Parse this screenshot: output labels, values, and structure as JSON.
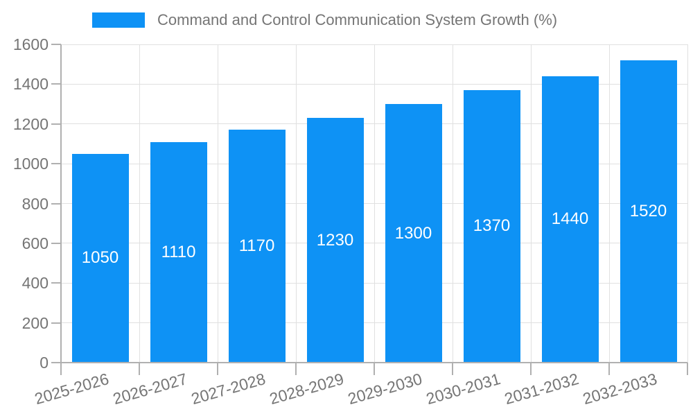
{
  "legend": {
    "series_label": "Command and Control Communication System Growth (%)"
  },
  "chart_data": {
    "type": "bar",
    "title": "Command and Control Communication System Growth (%)",
    "categories": [
      "2025-2026",
      "2026-2027",
      "2027-2028",
      "2028-2029",
      "2029-2030",
      "2030-2031",
      "2031-2032",
      "2032-2033"
    ],
    "values": [
      1050,
      1110,
      1170,
      1230,
      1300,
      1370,
      1440,
      1520
    ],
    "xlabel": "",
    "ylabel": "",
    "ylim": [
      0,
      1600
    ],
    "ytick_step": 200,
    "grid": true,
    "legend_position": "top",
    "bar_color": "#0E92F5",
    "value_label_color": "#ffffff",
    "grid_color": "#e0e0e0",
    "axis_color": "#b0b0b0",
    "tick_label_color": "#757575"
  }
}
